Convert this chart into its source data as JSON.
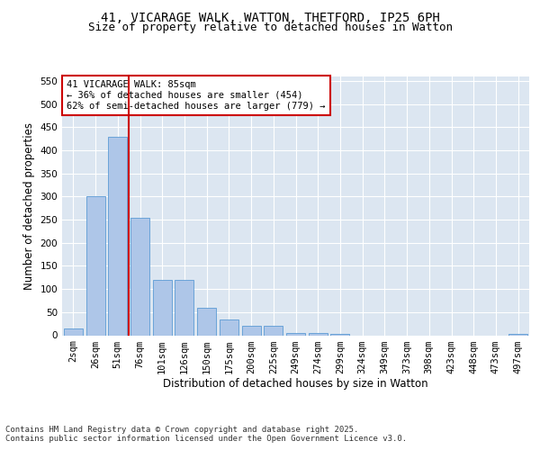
{
  "title_line1": "41, VICARAGE WALK, WATTON, THETFORD, IP25 6PH",
  "title_line2": "Size of property relative to detached houses in Watton",
  "xlabel": "Distribution of detached houses by size in Watton",
  "ylabel": "Number of detached properties",
  "categories": [
    "2sqm",
    "26sqm",
    "51sqm",
    "76sqm",
    "101sqm",
    "126sqm",
    "150sqm",
    "175sqm",
    "200sqm",
    "225sqm",
    "249sqm",
    "274sqm",
    "299sqm",
    "324sqm",
    "349sqm",
    "373sqm",
    "398sqm",
    "423sqm",
    "448sqm",
    "473sqm",
    "497sqm"
  ],
  "values": [
    15,
    300,
    430,
    255,
    120,
    120,
    60,
    35,
    20,
    20,
    5,
    5,
    3,
    0,
    0,
    0,
    0,
    0,
    0,
    0,
    2
  ],
  "bar_color": "#aec6e8",
  "bar_edgecolor": "#5b9bd5",
  "vline_color": "#cc0000",
  "vline_x_index": 2.5,
  "annotation_text": "41 VICARAGE WALK: 85sqm\n← 36% of detached houses are smaller (454)\n62% of semi-detached houses are larger (779) →",
  "annotation_box_color": "#cc0000",
  "ylim": [
    0,
    560
  ],
  "yticks": [
    0,
    50,
    100,
    150,
    200,
    250,
    300,
    350,
    400,
    450,
    500,
    550
  ],
  "background_color": "#dce6f1",
  "grid_color": "#ffffff",
  "footer_text": "Contains HM Land Registry data © Crown copyright and database right 2025.\nContains public sector information licensed under the Open Government Licence v3.0.",
  "title_fontsize": 10,
  "subtitle_fontsize": 9,
  "axis_label_fontsize": 8.5,
  "tick_fontsize": 7.5,
  "annotation_fontsize": 7.5,
  "footer_fontsize": 6.5
}
